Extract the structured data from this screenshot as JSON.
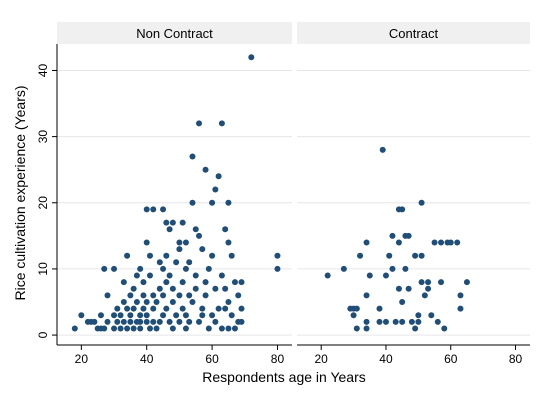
{
  "chart_data": {
    "type": "scatter",
    "xlabel": "Respondents age in Years",
    "ylabel": "Rice cultivation experience (Years)",
    "xlim": [
      15,
      82
    ],
    "ylim": [
      -1.5,
      44
    ],
    "xticks": [
      20,
      40,
      60,
      80
    ],
    "yticks": [
      0,
      10,
      20,
      30,
      40
    ],
    "grid": "horizontal",
    "marker_color": "#1f4e79",
    "panel_background": "#f0f0f0",
    "panels": [
      {
        "title": "Non Contract",
        "points": [
          [
            18,
            1
          ],
          [
            20,
            3
          ],
          [
            22,
            2
          ],
          [
            23,
            2
          ],
          [
            24,
            2
          ],
          [
            25,
            1
          ],
          [
            26,
            1
          ],
          [
            26,
            3
          ],
          [
            27,
            1
          ],
          [
            27,
            10
          ],
          [
            28,
            2
          ],
          [
            28,
            6
          ],
          [
            30,
            1
          ],
          [
            30,
            3
          ],
          [
            30,
            10
          ],
          [
            31,
            2
          ],
          [
            31,
            4
          ],
          [
            32,
            1
          ],
          [
            32,
            3
          ],
          [
            33,
            2
          ],
          [
            33,
            5
          ],
          [
            33,
            8
          ],
          [
            34,
            1
          ],
          [
            34,
            4
          ],
          [
            34,
            12
          ],
          [
            35,
            2
          ],
          [
            35,
            6
          ],
          [
            35,
            3
          ],
          [
            36,
            1
          ],
          [
            36,
            7
          ],
          [
            36,
            4
          ],
          [
            37,
            2
          ],
          [
            37,
            9
          ],
          [
            37,
            5
          ],
          [
            38,
            1
          ],
          [
            38,
            3
          ],
          [
            38,
            10
          ],
          [
            38,
            2
          ],
          [
            39,
            4
          ],
          [
            39,
            6
          ],
          [
            39,
            8
          ],
          [
            40,
            2
          ],
          [
            40,
            3
          ],
          [
            40,
            5
          ],
          [
            40,
            14
          ],
          [
            40,
            19
          ],
          [
            41,
            1
          ],
          [
            41,
            9
          ],
          [
            41,
            12
          ],
          [
            42,
            2
          ],
          [
            42,
            4
          ],
          [
            42,
            6
          ],
          [
            42,
            19
          ],
          [
            43,
            1
          ],
          [
            43,
            5
          ],
          [
            44,
            2
          ],
          [
            44,
            7
          ],
          [
            44,
            11
          ],
          [
            45,
            3
          ],
          [
            45,
            6
          ],
          [
            45,
            10
          ],
          [
            45,
            19
          ],
          [
            46,
            4
          ],
          [
            46,
            8
          ],
          [
            46,
            12
          ],
          [
            46,
            17
          ],
          [
            47,
            2
          ],
          [
            47,
            9
          ],
          [
            47,
            16
          ],
          [
            48,
            1
          ],
          [
            48,
            5
          ],
          [
            48,
            7
          ],
          [
            48,
            17
          ],
          [
            49,
            3
          ],
          [
            49,
            11
          ],
          [
            50,
            2
          ],
          [
            50,
            6
          ],
          [
            50,
            13
          ],
          [
            50,
            14
          ],
          [
            51,
            4
          ],
          [
            51,
            8
          ],
          [
            51,
            17
          ],
          [
            52,
            1
          ],
          [
            52,
            3
          ],
          [
            52,
            10
          ],
          [
            52,
            14
          ],
          [
            53,
            2
          ],
          [
            53,
            6
          ],
          [
            53,
            11
          ],
          [
            54,
            20
          ],
          [
            54,
            27
          ],
          [
            54,
            5
          ],
          [
            55,
            7
          ],
          [
            55,
            9
          ],
          [
            55,
            16
          ],
          [
            56,
            2
          ],
          [
            56,
            32
          ],
          [
            56,
            15
          ],
          [
            57,
            4
          ],
          [
            57,
            13
          ],
          [
            57,
            3
          ],
          [
            58,
            6
          ],
          [
            58,
            8
          ],
          [
            58,
            25
          ],
          [
            59,
            10
          ],
          [
            59,
            1
          ],
          [
            60,
            3
          ],
          [
            60,
            12
          ],
          [
            60,
            20
          ],
          [
            61,
            2
          ],
          [
            61,
            22
          ],
          [
            61,
            7
          ],
          [
            62,
            4
          ],
          [
            62,
            24
          ],
          [
            63,
            32
          ],
          [
            63,
            9
          ],
          [
            63,
            1
          ],
          [
            64,
            4
          ],
          [
            64,
            7
          ],
          [
            64,
            16
          ],
          [
            65,
            5
          ],
          [
            65,
            14
          ],
          [
            65,
            20
          ],
          [
            65,
            1
          ],
          [
            66,
            3
          ],
          [
            66,
            12
          ],
          [
            67,
            8
          ],
          [
            67,
            1
          ],
          [
            68,
            2
          ],
          [
            68,
            6
          ],
          [
            69,
            4
          ],
          [
            69,
            8
          ],
          [
            69,
            2
          ],
          [
            72,
            42
          ],
          [
            80,
            10
          ],
          [
            80,
            12
          ]
        ]
      },
      {
        "title": "Contract",
        "points": [
          [
            22,
            9
          ],
          [
            27,
            10
          ],
          [
            29,
            4
          ],
          [
            30,
            4
          ],
          [
            30,
            3
          ],
          [
            31,
            1
          ],
          [
            31,
            4
          ],
          [
            32,
            12
          ],
          [
            34,
            1
          ],
          [
            34,
            2
          ],
          [
            34,
            6
          ],
          [
            34,
            14
          ],
          [
            35,
            9
          ],
          [
            38,
            2
          ],
          [
            38,
            4
          ],
          [
            39,
            28
          ],
          [
            40,
            2
          ],
          [
            40,
            9
          ],
          [
            41,
            12
          ],
          [
            42,
            15
          ],
          [
            42,
            10
          ],
          [
            43,
            2
          ],
          [
            44,
            19
          ],
          [
            44,
            14
          ],
          [
            44,
            7
          ],
          [
            45,
            19
          ],
          [
            45,
            2
          ],
          [
            45,
            5
          ],
          [
            46,
            10
          ],
          [
            46,
            15
          ],
          [
            47,
            15
          ],
          [
            47,
            7
          ],
          [
            48,
            2
          ],
          [
            49,
            12
          ],
          [
            49,
            1
          ],
          [
            50,
            2
          ],
          [
            50,
            3
          ],
          [
            51,
            20
          ],
          [
            51,
            12
          ],
          [
            51,
            8
          ],
          [
            52,
            6
          ],
          [
            53,
            8
          ],
          [
            53,
            7
          ],
          [
            54,
            3
          ],
          [
            55,
            14
          ],
          [
            56,
            2
          ],
          [
            57,
            8
          ],
          [
            57,
            14
          ],
          [
            58,
            1
          ],
          [
            59,
            14
          ],
          [
            60,
            14
          ],
          [
            62,
            14
          ],
          [
            63,
            4
          ],
          [
            63,
            6
          ],
          [
            65,
            8
          ]
        ]
      }
    ]
  }
}
